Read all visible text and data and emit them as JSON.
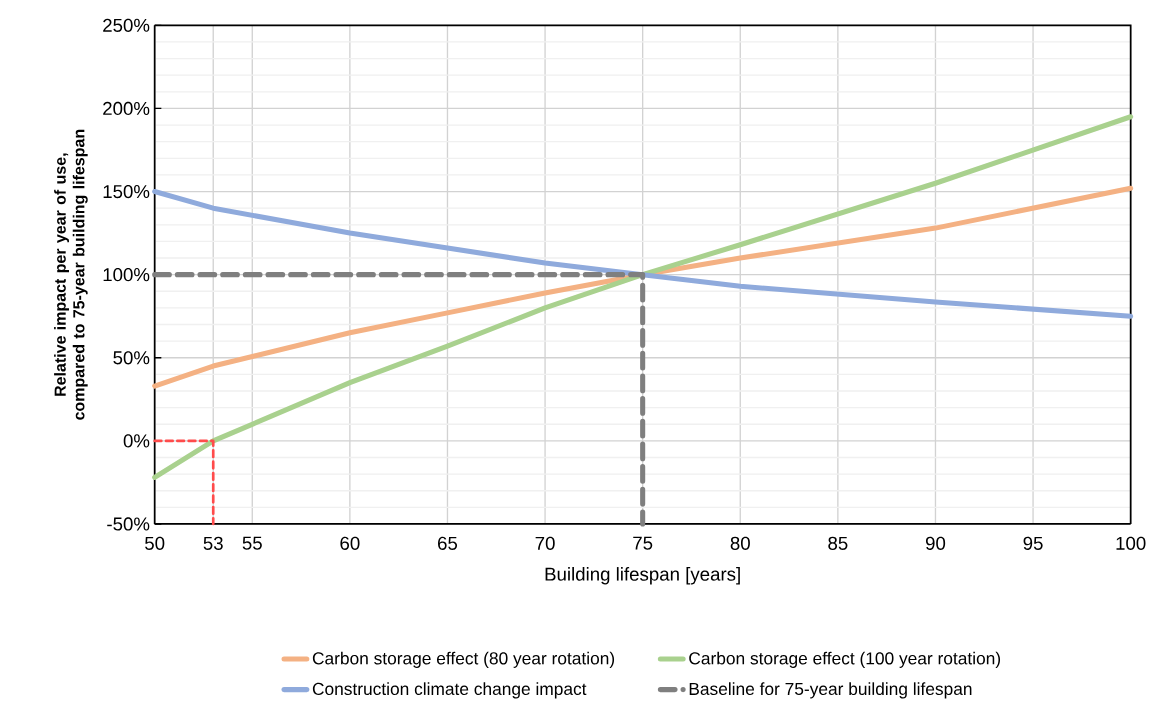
{
  "chart_data": {
    "type": "line",
    "xlabel": "Building lifespan [years]",
    "ylabel": "Relative impact per year of use, compared to 75-year building lifespan",
    "x": [
      50,
      53,
      60,
      65,
      70,
      75,
      80,
      90,
      100
    ],
    "series": [
      {
        "name": "Carbon storage effect (80 year rotation)",
        "color": "#f4b183",
        "values": [
          33,
          45,
          65,
          77,
          89,
          100,
          110,
          128,
          152
        ]
      },
      {
        "name": "Carbon storage effect (100 year rotation)",
        "color": "#a9d18e",
        "values": [
          -22,
          0,
          35,
          57,
          80,
          100,
          118,
          155,
          195
        ]
      },
      {
        "name": "Construction climate change impact",
        "color": "#8faadc",
        "values": [
          150,
          140,
          125,
          116,
          107,
          100,
          93,
          83.5,
          75
        ]
      },
      {
        "name": "Baseline for 75-year building lifespan",
        "color": "#7f7f7f",
        "x": [
          50,
          75,
          75
        ],
        "values": [
          100,
          100,
          -50
        ],
        "line_style": "dashed"
      },
      {
        "color": "#ff4b4b",
        "x": [
          50,
          53,
          53
        ],
        "values": [
          0,
          0,
          -50
        ],
        "line_style": "dashed"
      }
    ],
    "xlim": [
      50,
      100
    ],
    "xticks": [
      50,
      53,
      55,
      60,
      65,
      70,
      75,
      80,
      85,
      90,
      95,
      100
    ],
    "ylim": [
      -50,
      250
    ],
    "yticks": [
      {
        "value": -50,
        "label": "-50%"
      },
      {
        "value": 0,
        "label": "0%"
      },
      {
        "value": 50,
        "label": "50%"
      },
      {
        "value": 100,
        "label": "100%"
      },
      {
        "value": 150,
        "label": "150%"
      },
      {
        "value": 200,
        "label": "200%"
      },
      {
        "value": 250,
        "label": "250%"
      }
    ],
    "grid": true,
    "legend": "bottom",
    "marker": "none",
    "line_style": "solid"
  }
}
